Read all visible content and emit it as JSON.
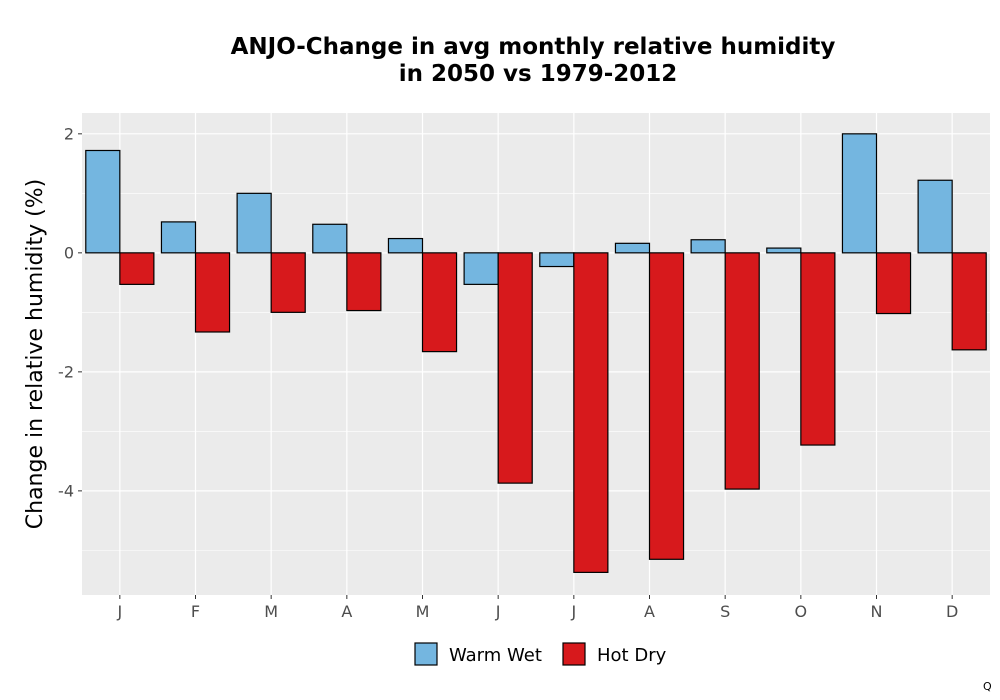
{
  "chart_data": {
    "type": "bar",
    "title_line1": "ANJO-Change in avg monthly relative humidity",
    "title_line2": "in 2050 vs 1979-2012",
    "xlabel": "",
    "ylabel": "Change in relative humidity (%)",
    "categories": [
      "J",
      "F",
      "M",
      "A",
      "M",
      "J",
      "J",
      "A",
      "S",
      "O",
      "N",
      "D"
    ],
    "series": [
      {
        "name": "Warm Wet",
        "color": "#74b6e0",
        "values": [
          1.72,
          0.52,
          1.0,
          0.48,
          0.24,
          -0.53,
          -0.23,
          0.16,
          0.22,
          0.08,
          2.0,
          1.22
        ]
      },
      {
        "name": "Hot Dry",
        "color": "#d7191c",
        "values": [
          -0.53,
          -1.33,
          -1.0,
          -0.97,
          -1.66,
          -3.87,
          -5.37,
          -5.15,
          -3.97,
          -3.23,
          -1.02,
          -1.63
        ]
      }
    ],
    "ylim": [
      -5.75,
      2.35
    ],
    "yticks": [
      2,
      0,
      -2,
      -4
    ],
    "ytick_labels": [
      "2",
      "0",
      "-2",
      "-4"
    ],
    "grid": true,
    "legend_position": "bottom",
    "panel_background": "#ebebeb",
    "corner_mark": "Q"
  }
}
